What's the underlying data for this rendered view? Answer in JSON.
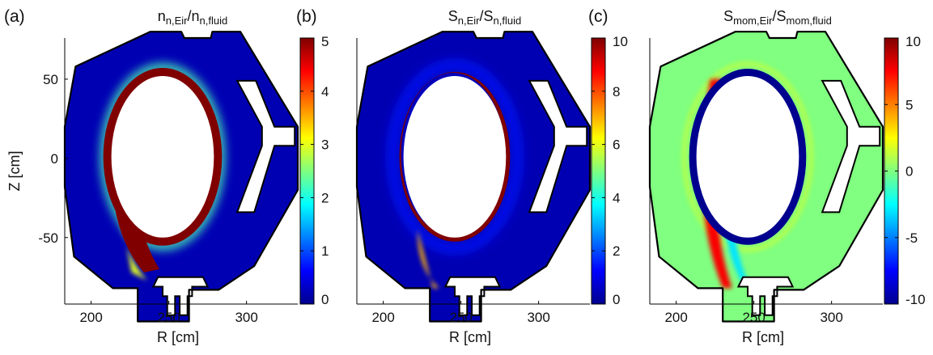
{
  "chart_data": [
    {
      "type": "heatmap",
      "panel_label": "(a)",
      "title_parts": [
        {
          "text": "n",
          "sub": false
        },
        {
          "text": "n,Eir",
          "sub": true
        },
        {
          "text": "/n",
          "sub": false
        },
        {
          "text": "n,fluid",
          "sub": true
        }
      ],
      "title": "n_{n,Eir}/n_{n,fluid}",
      "xlabel": "R [cm]",
      "ylabel": "Z [cm]",
      "xticks": [
        "200",
        "250",
        "300"
      ],
      "yticks": [
        "50",
        "0",
        "-50"
      ],
      "xlim": [
        183,
        333
      ],
      "ylim": [
        -92,
        76
      ],
      "colorbar": {
        "min": 0,
        "max": 5,
        "ticks": [
          "0",
          "1",
          "2",
          "3",
          "4",
          "5"
        ],
        "colormap": "jet"
      },
      "background_value": 0.2,
      "separatrix_ring_value": 5,
      "enhanced_region_value": 5,
      "grid": false
    },
    {
      "type": "heatmap",
      "panel_label": "(b)",
      "title_parts": [
        {
          "text": "S",
          "sub": false
        },
        {
          "text": "n,Eir",
          "sub": true
        },
        {
          "text": "/S",
          "sub": false
        },
        {
          "text": "n,fluid",
          "sub": true
        }
      ],
      "title": "S_{n,Eir}/S_{n,fluid}",
      "xlabel": "R [cm]",
      "ylabel": "",
      "xticks": [
        "200",
        "250",
        "300"
      ],
      "yticks": [],
      "xlim": [
        183,
        333
      ],
      "ylim": [
        -92,
        76
      ],
      "colorbar": {
        "min": 0,
        "max": 10,
        "ticks": [
          "0",
          "2",
          "4",
          "6",
          "8",
          "10"
        ],
        "colormap": "jet"
      },
      "background_value": 0.4,
      "separatrix_ring_value": 10,
      "grid": false
    },
    {
      "type": "heatmap",
      "panel_label": "(c)",
      "title_parts": [
        {
          "text": "S",
          "sub": false
        },
        {
          "text": "mom,Eir",
          "sub": true
        },
        {
          "text": "/S",
          "sub": false
        },
        {
          "text": "mom,fluid",
          "sub": true
        }
      ],
      "title": "S_{mom,Eir}/S_{mom,fluid}",
      "xlabel": "R [cm]",
      "ylabel": "",
      "xticks": [
        "200",
        "250",
        "300"
      ],
      "yticks": [],
      "xlim": [
        183,
        333
      ],
      "ylim": [
        -92,
        76
      ],
      "colorbar": {
        "min": -10,
        "max": 10,
        "ticks": [
          "-10",
          "-5",
          "0",
          "5",
          "10"
        ],
        "colormap": "jet"
      },
      "background_value": 0,
      "separatrix_ring_value": -10,
      "grid": false
    }
  ],
  "colors": {
    "jet": [
      "#00008f",
      "#0000ff",
      "#00ffff",
      "#ffff00",
      "#ff0000",
      "#800000"
    ],
    "outline": "#000000",
    "hole": "#ffffff"
  }
}
